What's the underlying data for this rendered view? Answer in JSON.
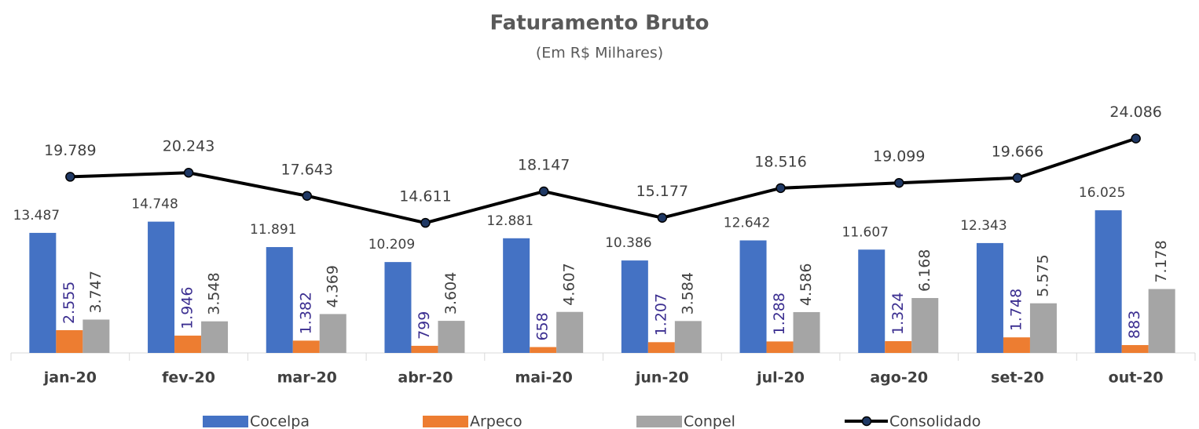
{
  "chart_data": {
    "type": "bar",
    "title": "Faturamento Bruto",
    "subtitle": "(Em R$ Milhares)",
    "categories": [
      "jan-20",
      "fev-20",
      "mar-20",
      "abr-20",
      "mai-20",
      "jun-20",
      "jul-20",
      "ago-20",
      "set-20",
      "out-20"
    ],
    "series": [
      {
        "name": "Cocelpa",
        "color": "#4472c4",
        "values": [
          13487,
          14748,
          11891,
          10209,
          12881,
          10386,
          12642,
          11607,
          12343,
          16025
        ],
        "value_labels": [
          "13.487",
          "14.748",
          "11.891",
          "10.209",
          "12.881",
          "10.386",
          "12.642",
          "11.607",
          "12.343",
          "16.025"
        ]
      },
      {
        "name": "Arpeco",
        "color": "#ed7d31",
        "values": [
          2555,
          1946,
          1382,
          799,
          658,
          1207,
          1288,
          1324,
          1748,
          883
        ],
        "value_labels": [
          "2.555",
          "1.946",
          "1.382",
          "799",
          "658",
          "1.207",
          "1.288",
          "1.324",
          "1.748",
          "883"
        ]
      },
      {
        "name": "Conpel",
        "color": "#a5a5a5",
        "values": [
          3747,
          3548,
          4369,
          3604,
          4607,
          3584,
          4586,
          6168,
          5575,
          7178
        ],
        "value_labels": [
          "3.747",
          "3.548",
          "4.369",
          "3.604",
          "4.607",
          "3.584",
          "4.586",
          "6.168",
          "5.575",
          "7.178"
        ]
      },
      {
        "name": "Consolidado",
        "type": "line",
        "color": "#000000",
        "values": [
          19789,
          20243,
          17643,
          14611,
          18147,
          15177,
          18516,
          19099,
          19666,
          24086
        ],
        "value_labels": [
          "19.789",
          "20.243",
          "17.643",
          "14.611",
          "18.147",
          "15.177",
          "18.516",
          "19.099",
          "19.666",
          "24.086"
        ]
      }
    ]
  }
}
